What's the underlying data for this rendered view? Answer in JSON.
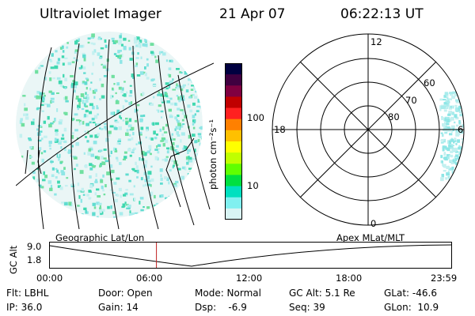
{
  "header": {
    "instrument": "Ultraviolet Imager",
    "date": "21 Apr 07",
    "time": "06:22:13 UT"
  },
  "colorbar": {
    "unit_label": "photon cm⁻²s⁻¹",
    "ticks": [
      {
        "value": 100,
        "label": "100"
      },
      {
        "value": 10,
        "label": "10"
      }
    ],
    "colors": [
      "#000040",
      "#400040",
      "#800040",
      "#c00000",
      "#ff2020",
      "#ff8000",
      "#ffc000",
      "#ffff00",
      "#c0ff00",
      "#60ff00",
      "#00e040",
      "#00e0c0",
      "#80f0f0",
      "#d8f4f4"
    ]
  },
  "polar_plot": {
    "mlt_labels": [
      "12",
      "18",
      "6",
      "0"
    ],
    "lat_labels": [
      "60",
      "70",
      "80"
    ]
  },
  "map_labels": {
    "left": "Geographic Lat/Lon",
    "right": "Apex  MLat/MLT"
  },
  "timeline": {
    "y_axis_title": "GC Alt",
    "y_ticks": [
      "9.0",
      "1.8"
    ],
    "x_ticks": [
      "00:00",
      "06:00",
      "12:00",
      "18:00",
      "23:59"
    ],
    "current_time_hours": 6.37
  },
  "info": {
    "row1": {
      "flt": "Flt: LBHL",
      "door": "Door: Open",
      "mode": "Mode: Normal",
      "gc_alt": "GC Alt: 5.1 Re",
      "glat": "GLat: -46.6"
    },
    "row2": {
      "ip": "IP: 36.0",
      "gain": "Gain: 14",
      "dsp": "Dsp:    -6.9",
      "seq": "Seq: 39",
      "glon": "GLon:  10.9"
    }
  }
}
